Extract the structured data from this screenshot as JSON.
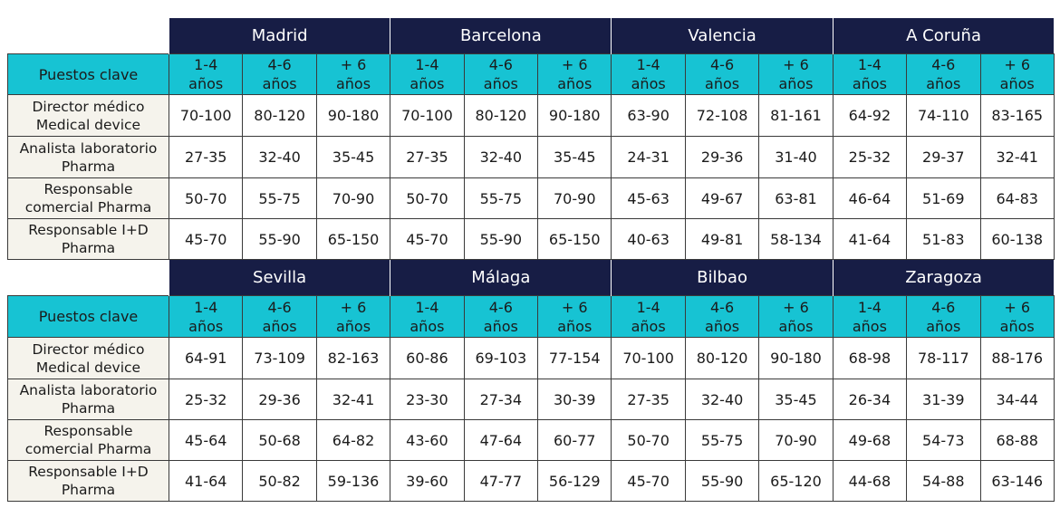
{
  "tables": [
    {
      "cities": [
        "Madrid",
        "Barcelona",
        "Valencia",
        "A Coruña"
      ],
      "header_label": "Puestos clave",
      "experience": [
        "1-4\naños",
        "4-6\naños",
        "+ 6\naños"
      ],
      "rows": [
        {
          "role": "Director médico\nMedical device",
          "values": [
            "70-100",
            "80-120",
            "90-180",
            "70-100",
            "80-120",
            "90-180",
            "63-90",
            "72-108",
            "81-161",
            "64-92",
            "74-110",
            "83-165"
          ]
        },
        {
          "role": "Analista laboratorio\nPharma",
          "values": [
            "27-35",
            "32-40",
            "35-45",
            "27-35",
            "32-40",
            "35-45",
            "24-31",
            "29-36",
            "31-40",
            "25-32",
            "29-37",
            "32-41"
          ]
        },
        {
          "role": "Responsable\ncomercial Pharma",
          "values": [
            "50-70",
            "55-75",
            "70-90",
            "50-70",
            "55-75",
            "70-90",
            "45-63",
            "49-67",
            "63-81",
            "46-64",
            "51-69",
            "64-83"
          ]
        },
        {
          "role": "Responsable I+D\nPharma",
          "values": [
            "45-70",
            "55-90",
            "65-150",
            "45-70",
            "55-90",
            "65-150",
            "40-63",
            "49-81",
            "58-134",
            "41-64",
            "51-83",
            "60-138"
          ]
        }
      ]
    },
    {
      "cities": [
        "Sevilla",
        "Málaga",
        "Bilbao",
        "Zaragoza"
      ],
      "header_label": "Puestos clave",
      "experience": [
        "1-4\naños",
        "4-6\naños",
        "+ 6\naños"
      ],
      "rows": [
        {
          "role": "Director médico\nMedical device",
          "values": [
            "64-91",
            "73-109",
            "82-163",
            "60-86",
            "69-103",
            "77-154",
            "70-100",
            "80-120",
            "90-180",
            "68-98",
            "78-117",
            "88-176"
          ]
        },
        {
          "role": "Analista laboratorio\nPharma",
          "values": [
            "25-32",
            "29-36",
            "32-41",
            "23-30",
            "27-34",
            "30-39",
            "27-35",
            "32-40",
            "35-45",
            "26-34",
            "31-39",
            "34-44"
          ]
        },
        {
          "role": "Responsable\ncomercial Pharma",
          "values": [
            "45-64",
            "50-68",
            "64-82",
            "43-60",
            "47-64",
            "60-77",
            "50-70",
            "55-75",
            "70-90",
            "49-68",
            "54-73",
            "68-88"
          ]
        },
        {
          "role": "Responsable I+D\nPharma",
          "values": [
            "41-64",
            "50-82",
            "59-136",
            "39-60",
            "47-77",
            "56-129",
            "45-70",
            "55-90",
            "65-120",
            "44-68",
            "54-88",
            "63-146"
          ]
        }
      ]
    }
  ]
}
